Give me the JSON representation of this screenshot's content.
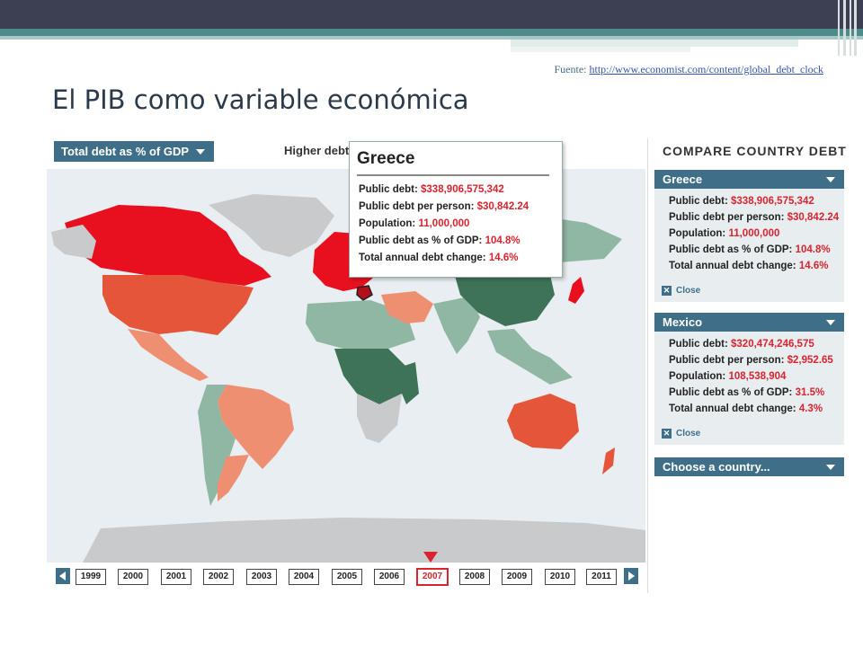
{
  "slide": {
    "title": "El PIB como variable económica",
    "source_prefix": "Fuente: ",
    "source_link": "http://www.economist.com/content/global_debt_clock"
  },
  "map_widget": {
    "metric_select": "Total debt as % of GDP",
    "legend_high": "Higher debt",
    "legend_low": "t",
    "colors": {
      "high": "#e8101e",
      "mid": "#ee8f72",
      "low": "#8fb7a3",
      "lowest": "#3f7358",
      "nodata": "#c9cacb",
      "sea": "#e8eef1"
    },
    "tooltip": {
      "country": "Greece",
      "rows": [
        {
          "label": "Public debt:",
          "value": "$338,906,575,342"
        },
        {
          "label": "Public debt per person:",
          "value": "$30,842.24"
        },
        {
          "label": "Population:",
          "value": "11,000,000"
        },
        {
          "label": "Public debt as % of GDP:",
          "value": "104.8%"
        },
        {
          "label": "Total annual debt change:",
          "value": "14.6%"
        }
      ]
    },
    "timeline": {
      "years": [
        "1999",
        "2000",
        "2001",
        "2002",
        "2003",
        "2004",
        "2005",
        "2006",
        "2007",
        "2008",
        "2009",
        "2010",
        "2011"
      ],
      "selected": "2007"
    }
  },
  "compare_panel": {
    "title": "COMPARE COUNTRY DEBT",
    "close_label": "Close",
    "choose_label": "Choose a country...",
    "countries": [
      {
        "name": "Greece",
        "rows": [
          {
            "label": "Public debt:",
            "value": "$338,906,575,342"
          },
          {
            "label": "Public debt per person:",
            "value": "$30,842.24"
          },
          {
            "label": "Population:",
            "value": "11,000,000"
          },
          {
            "label": "Public debt as % of GDP:",
            "value": "104.8%"
          },
          {
            "label": "Total annual debt change:",
            "value": "14.6%"
          }
        ]
      },
      {
        "name": "Mexico",
        "rows": [
          {
            "label": "Public debt:",
            "value": "$320,474,246,575"
          },
          {
            "label": "Public debt per person:",
            "value": "$2,952.65"
          },
          {
            "label": "Population:",
            "value": "108,538,904"
          },
          {
            "label": "Public debt as % of GDP:",
            "value": "31.5%"
          },
          {
            "label": "Total annual debt change:",
            "value": "4.3%"
          }
        ]
      }
    ]
  }
}
